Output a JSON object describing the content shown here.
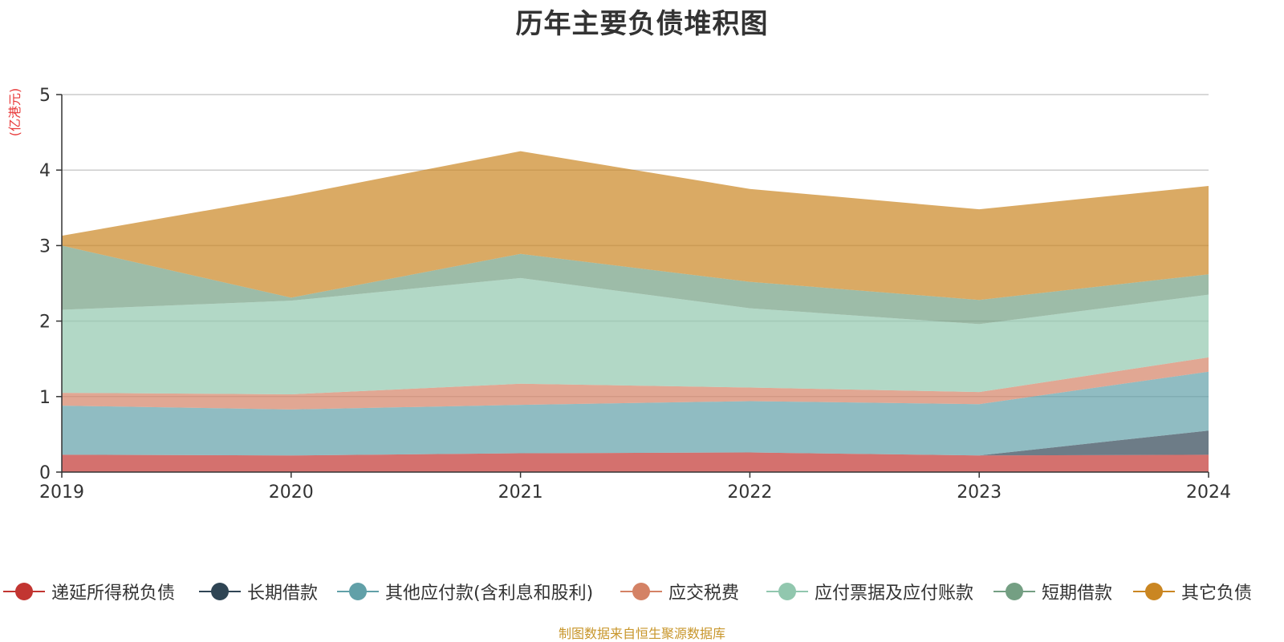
{
  "title": "历年主要负债堆积图",
  "unit": "(亿港元)",
  "source": "制图数据来自恒生聚源数据库",
  "chart_data": {
    "type": "area",
    "stacked": true,
    "title": "历年主要负债堆积图",
    "ylabel": "(亿港元)",
    "xlabel": "",
    "categories": [
      "2019",
      "2020",
      "2021",
      "2022",
      "2023",
      "2024"
    ],
    "ylim": [
      0,
      5
    ],
    "yticks": [
      0,
      1,
      2,
      3,
      4,
      5
    ],
    "grid": true,
    "legend_position": "bottom",
    "series": [
      {
        "name": "递延所得税负债",
        "color": "#c23531",
        "values": [
          0.23,
          0.22,
          0.25,
          0.26,
          0.22,
          0.23
        ]
      },
      {
        "name": "长期借款",
        "color": "#2f4554",
        "values": [
          0.0,
          0.0,
          0.0,
          0.0,
          0.0,
          0.32
        ]
      },
      {
        "name": "其他应付款(含利息和股利)",
        "color": "#61a0a8",
        "values": [
          0.65,
          0.61,
          0.64,
          0.68,
          0.68,
          0.78
        ]
      },
      {
        "name": "应交税费",
        "color": "#d48265",
        "values": [
          0.17,
          0.2,
          0.28,
          0.18,
          0.16,
          0.19
        ]
      },
      {
        "name": "应付票据及应付账款",
        "color": "#91c7ae",
        "values": [
          1.1,
          1.24,
          1.4,
          1.05,
          0.9,
          0.83
        ]
      },
      {
        "name": "短期借款",
        "color": "#749f83",
        "values": [
          0.85,
          0.04,
          0.32,
          0.35,
          0.32,
          0.27
        ]
      },
      {
        "name": "其它负债",
        "color": "#ca8622",
        "values": [
          0.13,
          1.35,
          1.36,
          1.23,
          1.2,
          1.17
        ]
      }
    ]
  }
}
